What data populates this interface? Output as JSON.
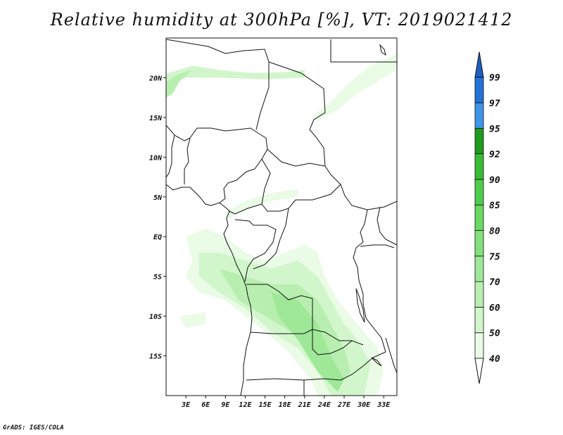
{
  "title": "Relative humidity at 300hPa [%], VT: 2019021412",
  "credit": "GrADS: IGES/COLA",
  "map": {
    "lon_range": [
      0,
      35
    ],
    "lat_range": [
      -20,
      25
    ],
    "lon_ticks": [
      {
        "value": 3,
        "label": "3E"
      },
      {
        "value": 6,
        "label": "6E"
      },
      {
        "value": 9,
        "label": "9E"
      },
      {
        "value": 12,
        "label": "12E"
      },
      {
        "value": 15,
        "label": "15E"
      },
      {
        "value": 18,
        "label": "18E"
      },
      {
        "value": 21,
        "label": "21E"
      },
      {
        "value": 24,
        "label": "24E"
      },
      {
        "value": 27,
        "label": "27E"
      },
      {
        "value": 30,
        "label": "30E"
      },
      {
        "value": 33,
        "label": "33E"
      }
    ],
    "lat_ticks": [
      {
        "value": 20,
        "label": "20N"
      },
      {
        "value": 15,
        "label": "15N"
      },
      {
        "value": 10,
        "label": "10N"
      },
      {
        "value": 5,
        "label": "5N"
      },
      {
        "value": 0,
        "label": "EQ"
      },
      {
        "value": -5,
        "label": "5S"
      },
      {
        "value": -10,
        "label": "10S"
      },
      {
        "value": -15,
        "label": "15S"
      }
    ]
  },
  "colorbar": {
    "levels": [
      {
        "label": "40",
        "color": "#ffffff"
      },
      {
        "label": "50",
        "color": "#eafbe6"
      },
      {
        "label": "60",
        "color": "#d2f6cc"
      },
      {
        "label": "70",
        "color": "#b8efb0"
      },
      {
        "label": "75",
        "color": "#9ee898"
      },
      {
        "label": "80",
        "color": "#84e07c"
      },
      {
        "label": "85",
        "color": "#6ad862"
      },
      {
        "label": "90",
        "color": "#4fcc4b"
      },
      {
        "label": "92",
        "color": "#3aba36"
      },
      {
        "label": "95",
        "color": "#1f9a1c"
      },
      {
        "label": "97",
        "color": "#3f95e8"
      },
      {
        "label": "99",
        "color": "#2272d8"
      }
    ],
    "top_color": "#1d5fc0"
  },
  "humidity_regions": [
    {
      "name": "sahel-band-north",
      "level": 2,
      "pts": [
        [
          0,
          20.5
        ],
        [
          4,
          21.5
        ],
        [
          8,
          21
        ],
        [
          13,
          20.6
        ],
        [
          18,
          20.7
        ],
        [
          21,
          21
        ],
        [
          21,
          20
        ],
        [
          15,
          19.8
        ],
        [
          8,
          20
        ],
        [
          3,
          20
        ],
        [
          0,
          19
        ]
      ]
    },
    {
      "name": "sahel-band-west",
      "level": 3,
      "pts": [
        [
          0,
          19.5
        ],
        [
          2,
          20.5
        ],
        [
          4,
          21
        ],
        [
          2,
          19.5
        ],
        [
          1,
          18
        ],
        [
          0,
          17.5
        ]
      ]
    },
    {
      "name": "northeast-streak",
      "level": 1,
      "pts": [
        [
          22,
          15
        ],
        [
          25,
          17
        ],
        [
          28,
          19.5
        ],
        [
          31,
          21.5
        ],
        [
          35,
          23
        ],
        [
          35,
          21
        ],
        [
          32,
          19.5
        ],
        [
          29,
          18
        ],
        [
          26,
          16
        ],
        [
          23,
          14.5
        ]
      ]
    },
    {
      "name": "gulf-streak",
      "level": 1,
      "pts": [
        [
          9,
          3
        ],
        [
          12,
          4.5
        ],
        [
          16,
          5.5
        ],
        [
          20,
          6
        ],
        [
          20,
          5
        ],
        [
          16,
          4.5
        ],
        [
          12,
          3.5
        ],
        [
          9,
          2
        ]
      ]
    },
    {
      "name": "congo-plume-outer",
      "level": 1,
      "pts": [
        [
          3,
          0
        ],
        [
          6,
          1
        ],
        [
          9,
          0
        ],
        [
          12,
          -2
        ],
        [
          15,
          -3
        ],
        [
          18,
          -2
        ],
        [
          21,
          -1
        ],
        [
          23,
          -2
        ],
        [
          24,
          -5
        ],
        [
          26,
          -8
        ],
        [
          28,
          -10
        ],
        [
          30,
          -12
        ],
        [
          32,
          -14
        ],
        [
          33,
          -17
        ],
        [
          32,
          -20
        ],
        [
          23,
          -20
        ],
        [
          22,
          -18
        ],
        [
          20,
          -16
        ],
        [
          18,
          -14
        ],
        [
          15,
          -12
        ],
        [
          12,
          -10
        ],
        [
          9,
          -8
        ],
        [
          5,
          -7
        ],
        [
          3,
          -5
        ],
        [
          4,
          -3
        ]
      ]
    },
    {
      "name": "congo-plume-mid",
      "level": 2,
      "pts": [
        [
          5,
          -2
        ],
        [
          8,
          -2
        ],
        [
          12,
          -3
        ],
        [
          16,
          -4
        ],
        [
          20,
          -3
        ],
        [
          23,
          -5
        ],
        [
          25,
          -8
        ],
        [
          27,
          -11
        ],
        [
          29,
          -13
        ],
        [
          31,
          -16
        ],
        [
          30,
          -20
        ],
        [
          25,
          -20
        ],
        [
          23,
          -17
        ],
        [
          20,
          -14
        ],
        [
          16,
          -12
        ],
        [
          12,
          -9
        ],
        [
          8,
          -7
        ],
        [
          5,
          -5
        ]
      ]
    },
    {
      "name": "congo-plume-core",
      "level": 3,
      "pts": [
        [
          8,
          -4
        ],
        [
          12,
          -5
        ],
        [
          16,
          -6
        ],
        [
          20,
          -6
        ],
        [
          23,
          -8
        ],
        [
          25,
          -11
        ],
        [
          27,
          -14
        ],
        [
          28,
          -17
        ],
        [
          26,
          -19
        ],
        [
          23,
          -16
        ],
        [
          19,
          -12
        ],
        [
          15,
          -10
        ],
        [
          11,
          -8
        ]
      ]
    },
    {
      "name": "congo-plume-peak",
      "level": 4,
      "pts": [
        [
          16,
          -7
        ],
        [
          20,
          -8
        ],
        [
          23,
          -11
        ],
        [
          25,
          -15
        ],
        [
          27,
          -18
        ],
        [
          26,
          -19.5
        ],
        [
          23,
          -17
        ],
        [
          20,
          -13
        ],
        [
          17,
          -10
        ]
      ]
    },
    {
      "name": "southwest-patch",
      "level": 1,
      "pts": [
        [
          2,
          -10
        ],
        [
          6,
          -9.5
        ],
        [
          6,
          -11
        ],
        [
          3,
          -11.5
        ]
      ]
    }
  ]
}
